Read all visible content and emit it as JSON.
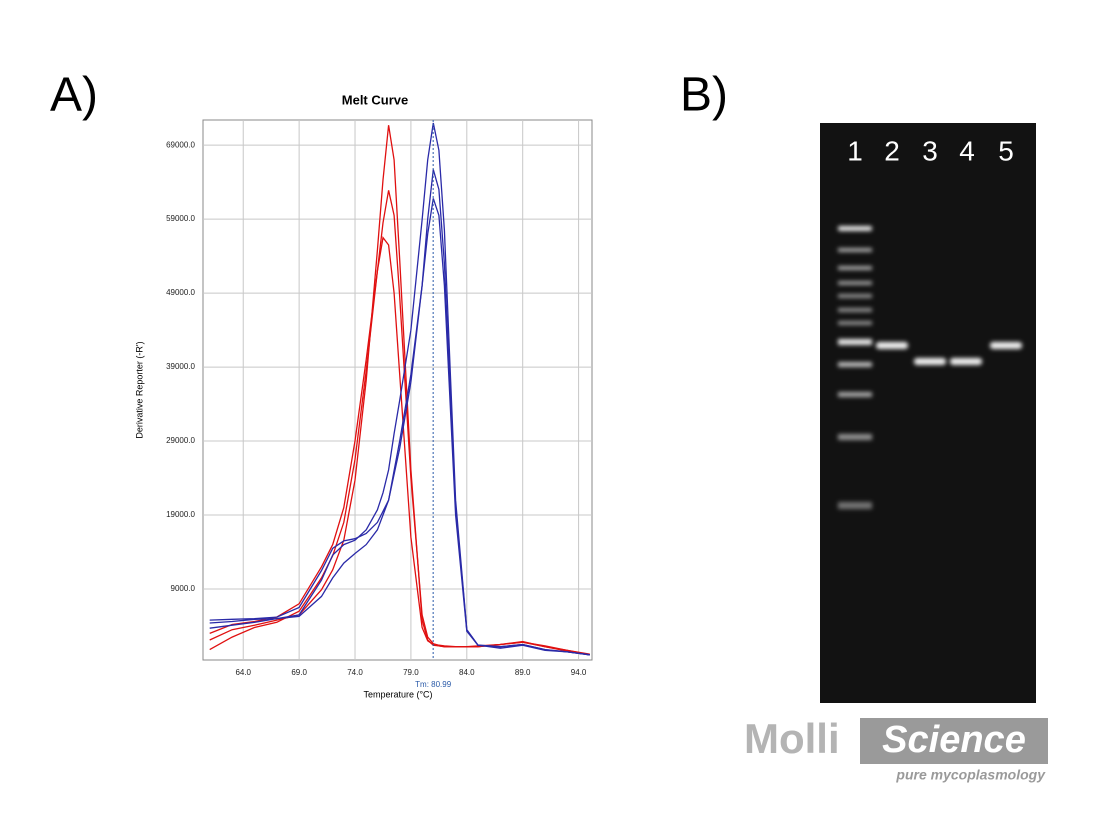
{
  "panels": {
    "a_label": "A)",
    "b_label": "B)"
  },
  "chart_data": {
    "type": "line",
    "title": "Melt Curve",
    "x_label": "Temperature (°C)",
    "y_label": "Derivative Reporter (-R')",
    "x": [
      61,
      63,
      65,
      67,
      69,
      71,
      72,
      73,
      74,
      75,
      76,
      76.5,
      77,
      77.5,
      78,
      79,
      80,
      80.5,
      81,
      81.5,
      82,
      83,
      84,
      85,
      87,
      89,
      91,
      93,
      95
    ],
    "series": [
      {
        "color": "#e01010",
        "values": [
          2100,
          3500,
          4100,
          4800,
          5500,
          8900,
          11600,
          15600,
          23700,
          37200,
          54800,
          64300,
          71700,
          67000,
          53500,
          25100,
          4800,
          2100,
          1400,
          1300,
          1200,
          1200,
          1200,
          1300,
          1500,
          1800,
          1300,
          700,
          100
        ]
      },
      {
        "color": "#e01010",
        "values": [
          800,
          2500,
          3800,
          4500,
          6000,
          10500,
          13500,
          18000,
          26500,
          38500,
          52000,
          58500,
          62900,
          59500,
          48500,
          24000,
          5500,
          2500,
          1600,
          1400,
          1300,
          1200,
          1200,
          1200,
          1500,
          1900,
          1200,
          700,
          200
        ]
      },
      {
        "color": "#e01010",
        "values": [
          3000,
          4200,
          4600,
          5200,
          7000,
          12000,
          15000,
          20000,
          29000,
          40000,
          52000,
          56500,
          55500,
          49000,
          38000,
          16000,
          3800,
          2000,
          1500,
          1300,
          1200,
          1200,
          1200,
          1200,
          1500,
          1800,
          1200,
          600,
          100
        ]
      },
      {
        "color": "#2a2aa8",
        "values": [
          3700,
          4100,
          4500,
          5000,
          5500,
          10200,
          13600,
          15000,
          15600,
          17000,
          19700,
          22000,
          25100,
          30000,
          34500,
          44000,
          58900,
          67000,
          72000,
          68300,
          57500,
          21000,
          3500,
          1400,
          1000,
          1400,
          700,
          500,
          100
        ]
      },
      {
        "color": "#2a2aa8",
        "values": [
          4800,
          4900,
          5000,
          5200,
          6500,
          11500,
          14500,
          15500,
          15800,
          16500,
          18000,
          19500,
          21000,
          24500,
          28000,
          37000,
          50000,
          59000,
          65700,
          63000,
          53000,
          20000,
          3500,
          1400,
          1200,
          1500,
          800,
          500,
          100
        ]
      },
      {
        "color": "#2a2aa8",
        "values": [
          4400,
          4600,
          4900,
          5000,
          5300,
          8000,
          10500,
          12500,
          13800,
          15000,
          17000,
          19000,
          21000,
          25000,
          29000,
          38000,
          50000,
          57000,
          61800,
          59500,
          50000,
          19000,
          3300,
          1400,
          1200,
          1500,
          800,
          500,
          100
        ]
      }
    ],
    "xlim": [
      60.4,
      95.2
    ],
    "ylim": [
      -600,
      72400
    ],
    "xticks": [
      {
        "value": 64,
        "label": "64.0"
      },
      {
        "value": 69,
        "label": "69.0"
      },
      {
        "value": 74,
        "label": "74.0"
      },
      {
        "value": 79,
        "label": "79.0"
      },
      {
        "value": 84,
        "label": "84.0"
      },
      {
        "value": 89,
        "label": "89.0"
      },
      {
        "value": 94,
        "label": "94.0"
      }
    ],
    "yticks": [
      {
        "value": 9000,
        "label": "9000.0"
      },
      {
        "value": 19000,
        "label": "19000.0"
      },
      {
        "value": 29000,
        "label": "29000.0"
      },
      {
        "value": 39000,
        "label": "39000.0"
      },
      {
        "value": 49000,
        "label": "49000.0"
      },
      {
        "value": 59000,
        "label": "59000.0"
      },
      {
        "value": 69000,
        "label": "69000.0"
      }
    ],
    "grid": true,
    "annotations": [
      {
        "x": 80.99,
        "text": "Tm: 80.99"
      }
    ]
  },
  "gel": {
    "lanes": [
      "1",
      "2",
      "3",
      "4",
      "5"
    ]
  },
  "logo": {
    "brand_a": "Molli",
    "brand_b": "Science",
    "tagline": "pure mycoplasmology"
  }
}
